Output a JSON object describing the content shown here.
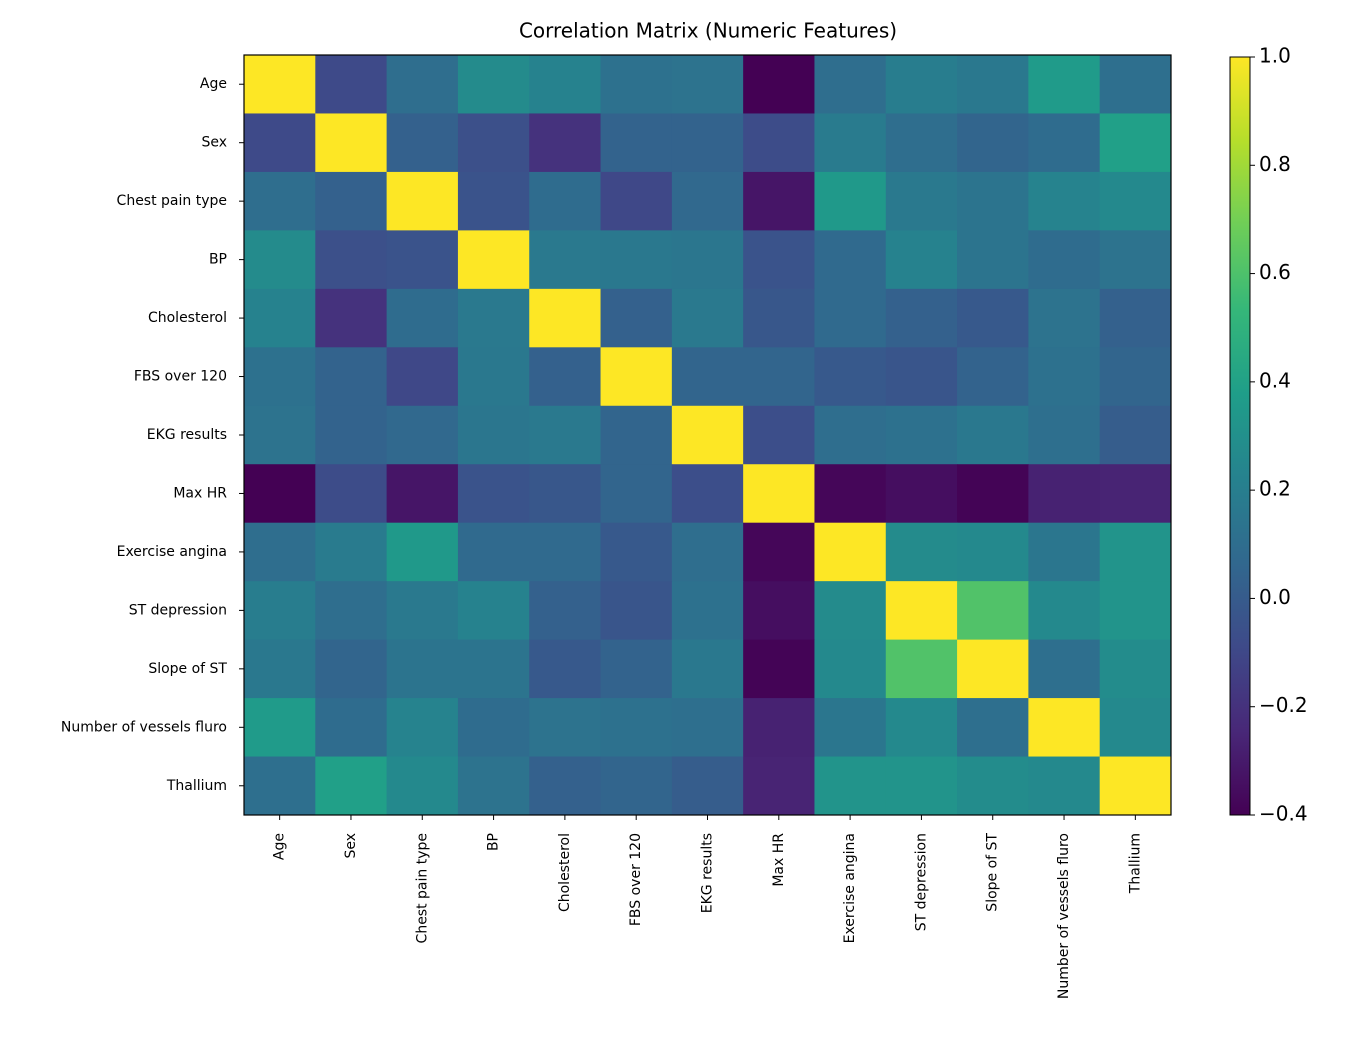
{
  "chart_data": {
    "type": "heatmap",
    "title": "Correlation Matrix (Numeric Features)",
    "categories": [
      "Age",
      "Sex",
      "Chest pain type",
      "BP",
      "Cholesterol",
      "FBS over 120",
      "EKG results",
      "Max HR",
      "Exercise angina",
      "ST depression",
      "Slope of ST",
      "Number of vessels fluro",
      "Thallium"
    ],
    "values": [
      [
        1,
        -0.09,
        0.1,
        0.27,
        0.22,
        0.12,
        0.13,
        -0.4,
        0.1,
        0.19,
        0.16,
        0.36,
        0.11
      ],
      [
        -0.09,
        1,
        0.03,
        -0.06,
        -0.2,
        0.04,
        0.04,
        -0.08,
        0.18,
        0.1,
        0.05,
        0.09,
        0.39
      ],
      [
        0.1,
        0.03,
        1,
        -0.04,
        0.09,
        -0.1,
        0.07,
        -0.32,
        0.35,
        0.17,
        0.14,
        0.23,
        0.26
      ],
      [
        0.27,
        -0.06,
        -0.04,
        1,
        0.17,
        0.16,
        0.15,
        -0.04,
        0.08,
        0.22,
        0.14,
        0.09,
        0.13
      ],
      [
        0.22,
        -0.2,
        0.09,
        0.17,
        1,
        0.03,
        0.17,
        -0.02,
        0.08,
        0.03,
        -0.01,
        0.13,
        0.03
      ],
      [
        0.12,
        0.04,
        -0.1,
        0.16,
        0.03,
        1,
        0.05,
        0.05,
        -0.01,
        -0.03,
        0.04,
        0.12,
        0.05
      ],
      [
        0.13,
        0.04,
        0.07,
        0.15,
        0.17,
        0.05,
        1,
        -0.07,
        0.1,
        0.12,
        0.16,
        0.11,
        0.01
      ],
      [
        -0.4,
        -0.08,
        -0.32,
        -0.04,
        -0.02,
        0.05,
        -0.07,
        1,
        -0.38,
        -0.35,
        -0.39,
        -0.27,
        -0.26
      ],
      [
        0.1,
        0.18,
        0.35,
        0.08,
        0.08,
        -0.01,
        0.1,
        -0.38,
        1,
        0.27,
        0.26,
        0.15,
        0.32
      ],
      [
        0.19,
        0.1,
        0.17,
        0.22,
        0.03,
        -0.03,
        0.12,
        -0.35,
        0.27,
        1,
        0.61,
        0.26,
        0.32
      ],
      [
        0.16,
        0.05,
        0.14,
        0.14,
        -0.01,
        0.04,
        0.16,
        -0.39,
        0.26,
        0.61,
        1,
        0.11,
        0.28
      ],
      [
        0.36,
        0.09,
        0.23,
        0.09,
        0.13,
        0.12,
        0.11,
        -0.27,
        0.15,
        0.26,
        0.11,
        1,
        0.26
      ],
      [
        0.11,
        0.39,
        0.26,
        0.13,
        0.03,
        0.05,
        0.01,
        -0.26,
        0.32,
        0.32,
        0.28,
        0.26,
        1
      ]
    ],
    "colormap": "viridis",
    "clim": [
      -0.4,
      1.0
    ],
    "cticks": [
      {
        "value": -0.4,
        "label": "−0.4"
      },
      {
        "value": -0.2,
        "label": "−0.2"
      },
      {
        "value": 0.0,
        "label": "0.0"
      },
      {
        "value": 0.2,
        "label": "0.2"
      },
      {
        "value": 0.4,
        "label": "0.4"
      },
      {
        "value": 0.6,
        "label": "0.6"
      },
      {
        "value": 0.8,
        "label": "0.8"
      },
      {
        "value": 1.0,
        "label": "1.0"
      }
    ]
  }
}
